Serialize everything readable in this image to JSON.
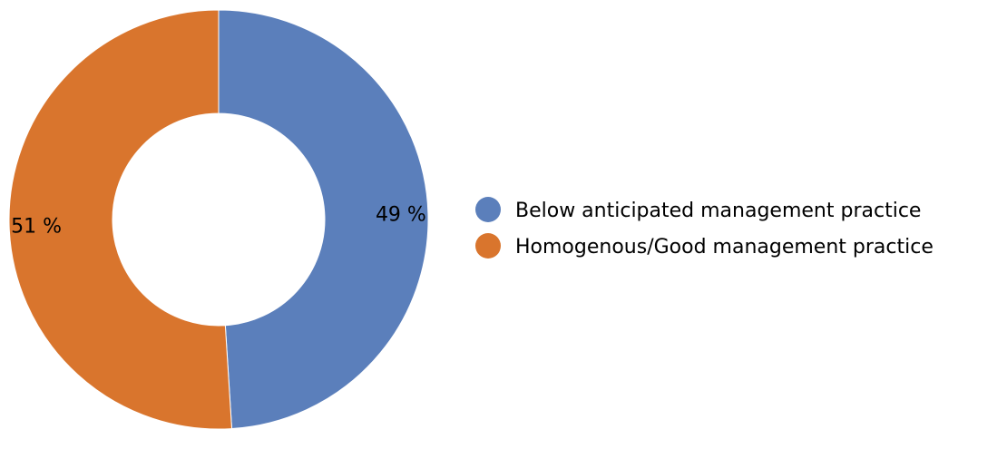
{
  "chart_data": {
    "type": "pie",
    "donut": true,
    "title": "",
    "legend_position": "right",
    "slices": [
      {
        "label": "Below anticipated management practice",
        "value": 49,
        "value_label": "49 %",
        "color": "#5b7fbb"
      },
      {
        "label": "Homogenous/Good management practice",
        "value": 51,
        "value_label": "51 %",
        "color": "#d9752d"
      }
    ]
  }
}
